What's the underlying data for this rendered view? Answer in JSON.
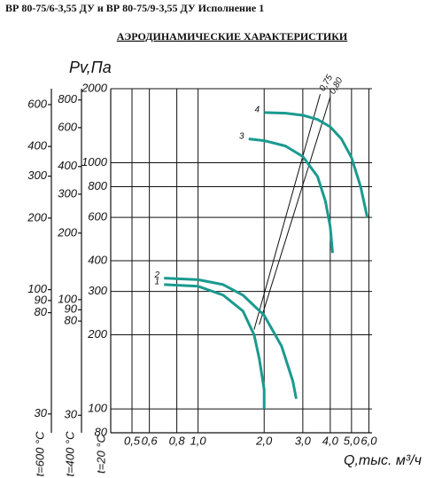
{
  "chart_data": {
    "type": "line",
    "title": "ВР 80-75/6-3,55 ДУ и ВР 80-75/9-3,55 ДУ Исполнение 1",
    "subtitle": "АЭРОДИНАМИЧЕСКИЕ ХАРАКТЕРИСТИКИ",
    "y_label": "Pv,Па",
    "x_label": "Q,тыс. м³/ч",
    "x_log": true,
    "y_log": true,
    "grid": true,
    "color": "#1a9a8f",
    "xlim": [
      0.4,
      6.2
    ],
    "xticks": [
      {
        "value": 0.5,
        "label": "0,5"
      },
      {
        "value": 0.6,
        "label": "0,6"
      },
      {
        "value": 0.8,
        "label": "0,8"
      },
      {
        "value": 1.0,
        "label": "1,0"
      },
      {
        "value": 2.0,
        "label": "2,0"
      },
      {
        "value": 3.0,
        "label": "3,0"
      },
      {
        "value": 4.0,
        "label": "4,0"
      },
      {
        "value": 5.0,
        "label": "5,0"
      },
      {
        "value": 6.0,
        "label": "6,0"
      }
    ],
    "ylim": [
      80,
      2000
    ],
    "yticks": [
      80,
      100,
      200,
      300,
      400,
      600,
      800,
      1000,
      2000
    ],
    "y_axis_label": "t=20 °C",
    "aux_axes": [
      {
        "label": "t=600 °C",
        "ylim": [
          25,
          700
        ],
        "yticks": [
          30,
          80,
          90,
          100,
          200,
          300,
          400,
          600
        ]
      },
      {
        "label": "t=400 °C",
        "ylim": [
          25,
          900
        ],
        "yticks": [
          30,
          80,
          90,
          100,
          200,
          300,
          400,
          600,
          800
        ]
      }
    ],
    "series": [
      {
        "name": "1",
        "x": [
          0.7,
          1.0,
          1.3,
          1.6,
          1.8,
          1.9,
          2.0,
          2.0
        ],
        "values": [
          320,
          315,
          290,
          250,
          200,
          160,
          120,
          100
        ]
      },
      {
        "name": "2",
        "x": [
          0.7,
          1.0,
          1.3,
          1.6,
          2.0,
          2.4,
          2.7,
          2.8
        ],
        "values": [
          340,
          335,
          320,
          290,
          240,
          180,
          130,
          110
        ]
      },
      {
        "name": "3",
        "x": [
          1.7,
          2.0,
          2.5,
          3.0,
          3.5,
          3.8,
          4.0,
          4.1
        ],
        "values": [
          1250,
          1230,
          1170,
          1060,
          880,
          700,
          550,
          430
        ]
      },
      {
        "name": "4",
        "x": [
          2.0,
          2.5,
          3.0,
          3.5,
          4.0,
          4.5,
          5.0,
          5.5,
          5.9
        ],
        "values": [
          1600,
          1590,
          1560,
          1500,
          1400,
          1250,
          1050,
          800,
          600
        ]
      }
    ],
    "lines": [
      {
        "name": "0,75",
        "x": [
          1.8,
          3.6
        ],
        "values": [
          210,
          1900
        ]
      },
      {
        "name": "0,80",
        "x": [
          1.9,
          4.0
        ],
        "values": [
          220,
          1850
        ]
      }
    ]
  }
}
